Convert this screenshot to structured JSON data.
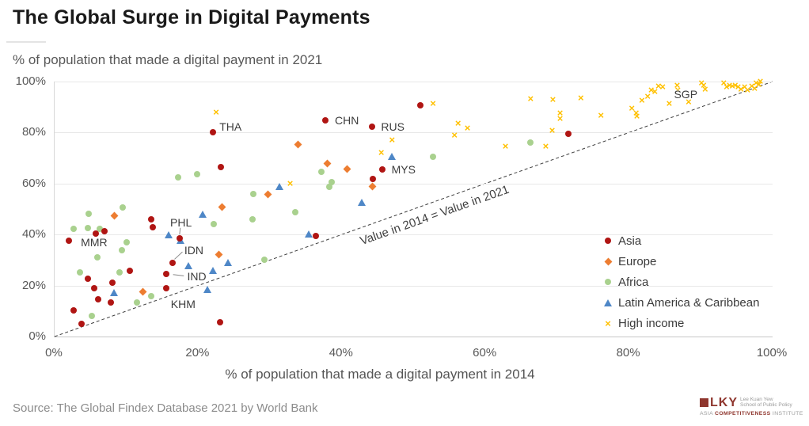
{
  "title": "The Global Surge in Digital Payments",
  "subtitle": "% of population that made a digital payment in 2021",
  "source": "Source: The Global Findex Database 2021 by World Bank",
  "logo": {
    "acronym": "LKY",
    "school_line1": "Lee Kuan Yew",
    "school_line2": "School of Public Policy",
    "inst_word1": "Asia",
    "inst_word2": "Competitiveness",
    "inst_word3": "Institute"
  },
  "colors": {
    "asia": "#B01513",
    "europe": "#ED7D31",
    "africa": "#A9D18E",
    "latam": "#4E87C7",
    "high_income": "#FFC000",
    "grid": "#E8E8E8",
    "ref_line": "#3F3F3F"
  },
  "chart_data": {
    "type": "scatter",
    "title": "The Global Surge in Digital Payments",
    "xlabel": "% of population that made a digital payment in 2014",
    "ylabel": "% of population that made a digital payment in 2021",
    "xlim": [
      0,
      100
    ],
    "ylim": [
      0,
      100
    ],
    "x_tick_values": [
      0,
      20,
      40,
      60,
      80,
      100
    ],
    "x_tick_labels": [
      "0%",
      "20%",
      "40%",
      "60%",
      "80%",
      "100%"
    ],
    "y_tick_values": [
      0,
      20,
      40,
      60,
      80,
      100
    ],
    "y_tick_labels": [
      "0%",
      "20%",
      "40%",
      "60%",
      "80%",
      "100%"
    ],
    "grid": "horizontal-only",
    "legend_position": "inside-lower-right",
    "reference_line": {
      "from": [
        0,
        0
      ],
      "to": [
        100,
        100
      ],
      "style": "dashed",
      "label": "Value in 2014 = Value in 2021",
      "label_x": 52.9,
      "label_y": 47.5
    },
    "series": [
      {
        "name": "Asia",
        "marker": "circle",
        "color": "#B01513",
        "points": [
          [
            2,
            37.5
          ],
          [
            22,
            80
          ],
          [
            37.7,
            84.7
          ],
          [
            44.2,
            82.3
          ],
          [
            45.6,
            65.4
          ],
          [
            17.4,
            38.5
          ],
          [
            16.4,
            29
          ],
          [
            15.6,
            24.6
          ],
          [
            15.5,
            19
          ],
          [
            50.9,
            90.7
          ],
          [
            23.1,
            66.5
          ],
          [
            71.6,
            79.6
          ],
          [
            44.3,
            61.9
          ],
          [
            36.4,
            39.4
          ],
          [
            13.4,
            45.9
          ],
          [
            13.7,
            43
          ],
          [
            5.7,
            40.5
          ],
          [
            7,
            41.2
          ],
          [
            10.5,
            25.8
          ],
          [
            4.6,
            22.7
          ],
          [
            5.5,
            19
          ],
          [
            8.1,
            21.2
          ],
          [
            6.1,
            14.7
          ],
          [
            7.8,
            13.5
          ],
          [
            2.6,
            10.1
          ],
          [
            3.8,
            4.9
          ],
          [
            23,
            5.5
          ]
        ]
      },
      {
        "name": "Europe",
        "marker": "diamond",
        "color": "#ED7D31",
        "points": [
          [
            33.9,
            75.4
          ],
          [
            38,
            67.9
          ],
          [
            40.7,
            65.6
          ],
          [
            44.3,
            58.9
          ],
          [
            29.7,
            55.9
          ],
          [
            23.3,
            50.9
          ],
          [
            8.3,
            47.4
          ],
          [
            22.9,
            32.1
          ],
          [
            12.3,
            17.4
          ]
        ]
      },
      {
        "name": "Africa",
        "marker": "circle",
        "color": "#A9D18E",
        "points": [
          [
            17.2,
            62.3
          ],
          [
            19.9,
            63.6
          ],
          [
            27.7,
            55.9
          ],
          [
            33.5,
            48.8
          ],
          [
            9.5,
            50.6
          ],
          [
            4.7,
            48
          ],
          [
            52.7,
            70.4
          ],
          [
            66.3,
            76
          ],
          [
            37.2,
            64.5
          ],
          [
            38.6,
            60.7
          ],
          [
            38.3,
            58.6
          ],
          [
            22.2,
            44.1
          ],
          [
            27.6,
            46.1
          ],
          [
            2.7,
            42.2
          ],
          [
            4.6,
            42.5
          ],
          [
            6.3,
            42.2
          ],
          [
            10,
            37.1
          ],
          [
            9.4,
            34
          ],
          [
            5.9,
            31.2
          ],
          [
            29.2,
            30.1
          ],
          [
            3.5,
            25.1
          ],
          [
            9,
            25.1
          ],
          [
            13.4,
            15.8
          ],
          [
            11.5,
            13.3
          ],
          [
            5.2,
            8.1
          ]
        ]
      },
      {
        "name": "Latin America & Caribbean",
        "marker": "triangle",
        "color": "#4E87C7",
        "points": [
          [
            31.3,
            58.9
          ],
          [
            20.6,
            48
          ],
          [
            47,
            70.6
          ],
          [
            42.8,
            52.6
          ],
          [
            35.4,
            40.2
          ],
          [
            15.9,
            39.9
          ],
          [
            17.5,
            37.6
          ],
          [
            18.6,
            27.9
          ],
          [
            24.1,
            28.9
          ],
          [
            22.1,
            26
          ],
          [
            21.3,
            18.6
          ],
          [
            8.3,
            17.1
          ]
        ]
      },
      {
        "name": "High income",
        "marker": "x",
        "color": "#FFC000",
        "points": [
          [
            22.5,
            88
          ],
          [
            32.8,
            60
          ],
          [
            52.7,
            91.3
          ],
          [
            56.2,
            83.5
          ],
          [
            57.5,
            81.8
          ],
          [
            55.7,
            78.8
          ],
          [
            47,
            77.1
          ],
          [
            66.3,
            93.1
          ],
          [
            62.8,
            74.6
          ],
          [
            68.4,
            74.6
          ],
          [
            45.5,
            72
          ],
          [
            69.4,
            92.8
          ],
          [
            73.3,
            93.5
          ],
          [
            70.4,
            87.7
          ],
          [
            70.4,
            85.3
          ],
          [
            69.3,
            80.9
          ],
          [
            76.1,
            86.6
          ],
          [
            80.4,
            89.4
          ],
          [
            81,
            87.7
          ],
          [
            81.1,
            86.4
          ],
          [
            81.8,
            92.7
          ],
          [
            82.6,
            94
          ],
          [
            83.1,
            96.5
          ],
          [
            83.6,
            96.1
          ],
          [
            84.1,
            98.2
          ],
          [
            84.7,
            97.9
          ],
          [
            85.6,
            91.2
          ],
          [
            86.7,
            98.3
          ],
          [
            86.8,
            96.6
          ],
          [
            88.3,
            91.8
          ],
          [
            90.1,
            99.4
          ],
          [
            90.4,
            98.3
          ],
          [
            90.6,
            96.9
          ],
          [
            93.2,
            99.4
          ],
          [
            93.6,
            97.8
          ],
          [
            94,
            98.3
          ],
          [
            94.4,
            98
          ],
          [
            94.8,
            98.3
          ],
          [
            95.2,
            97.8
          ],
          [
            95.6,
            96.9
          ],
          [
            96.1,
            97.8
          ],
          [
            96.5,
            96.7
          ],
          [
            97.1,
            98
          ],
          [
            97.5,
            97.3
          ],
          [
            97.7,
            99.4
          ],
          [
            98.1,
            98.9
          ],
          [
            98.3,
            99.9
          ]
        ]
      }
    ],
    "point_labels": [
      {
        "text": "MMR",
        "x": 5.5,
        "y": 36.9
      },
      {
        "text": "THA",
        "x": 24.5,
        "y": 82.3
      },
      {
        "text": "CHN",
        "x": 40.7,
        "y": 84.7
      },
      {
        "text": "RUS",
        "x": 47.1,
        "y": 82.3
      },
      {
        "text": "MYS",
        "x": 48.6,
        "y": 65.5
      },
      {
        "text": "PHL",
        "x": 17.6,
        "y": 44.7,
        "line": [
          [
            17.5,
            42.6
          ],
          [
            17.4,
            39.8
          ]
        ]
      },
      {
        "text": "IDN",
        "x": 19.4,
        "y": 34.0,
        "line": [
          [
            17.8,
            33.2
          ],
          [
            16.7,
            30.3
          ]
        ]
      },
      {
        "text": "IND",
        "x": 19.8,
        "y": 23.5,
        "line": [
          [
            18.0,
            23.8
          ],
          [
            16.5,
            24.3
          ]
        ]
      },
      {
        "text": "KHM",
        "x": 17.9,
        "y": 12.8
      },
      {
        "text": "SGP",
        "x": 87.9,
        "y": 94.9
      }
    ]
  }
}
